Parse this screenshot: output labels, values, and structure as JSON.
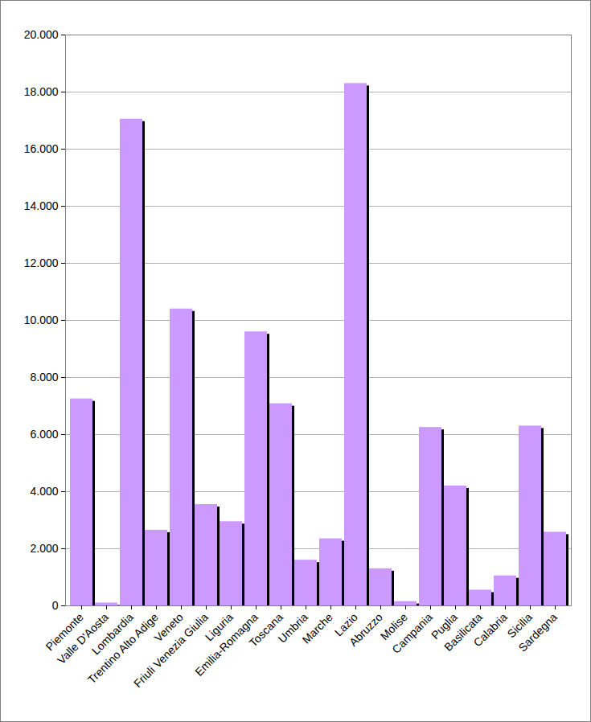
{
  "chart_data": {
    "type": "bar",
    "categories": [
      "Piemonte",
      "Valle D'Aosta",
      "Lombardia",
      "Trentino Alto Adige",
      "Veneto",
      "Friuli Venezia Giulia",
      "Liguria",
      "Emilia-Romagna",
      "Toscana",
      "Umbria",
      "Marche",
      "Lazio",
      "Abruzzo",
      "Molise",
      "Campania",
      "Puglia",
      "Basilicata",
      "Calabria",
      "Sicilia",
      "Sardegna"
    ],
    "values": [
      7250,
      100,
      17050,
      2650,
      10400,
      3550,
      2950,
      9600,
      7080,
      1600,
      2350,
      18300,
      1300,
      150,
      6250,
      4200,
      550,
      1050,
      6300,
      2580
    ],
    "color": "#cc99ff",
    "ylim": [
      0,
      20000
    ],
    "yticks": [
      0,
      {
        "value": 2000,
        "label": "2.000"
      },
      {
        "value": 4000,
        "label": "4.000"
      },
      {
        "value": 6000,
        "label": "6.000"
      },
      {
        "value": 8000,
        "label": "8.000"
      },
      {
        "value": 10000,
        "label": "10.000"
      },
      {
        "value": 12000,
        "label": "12.000"
      },
      {
        "value": 14000,
        "label": "14.000"
      },
      {
        "value": 16000,
        "label": "16.000"
      },
      {
        "value": 18000,
        "label": "18.000"
      },
      {
        "value": 20000,
        "label": "20.000"
      }
    ],
    "grid": true
  }
}
